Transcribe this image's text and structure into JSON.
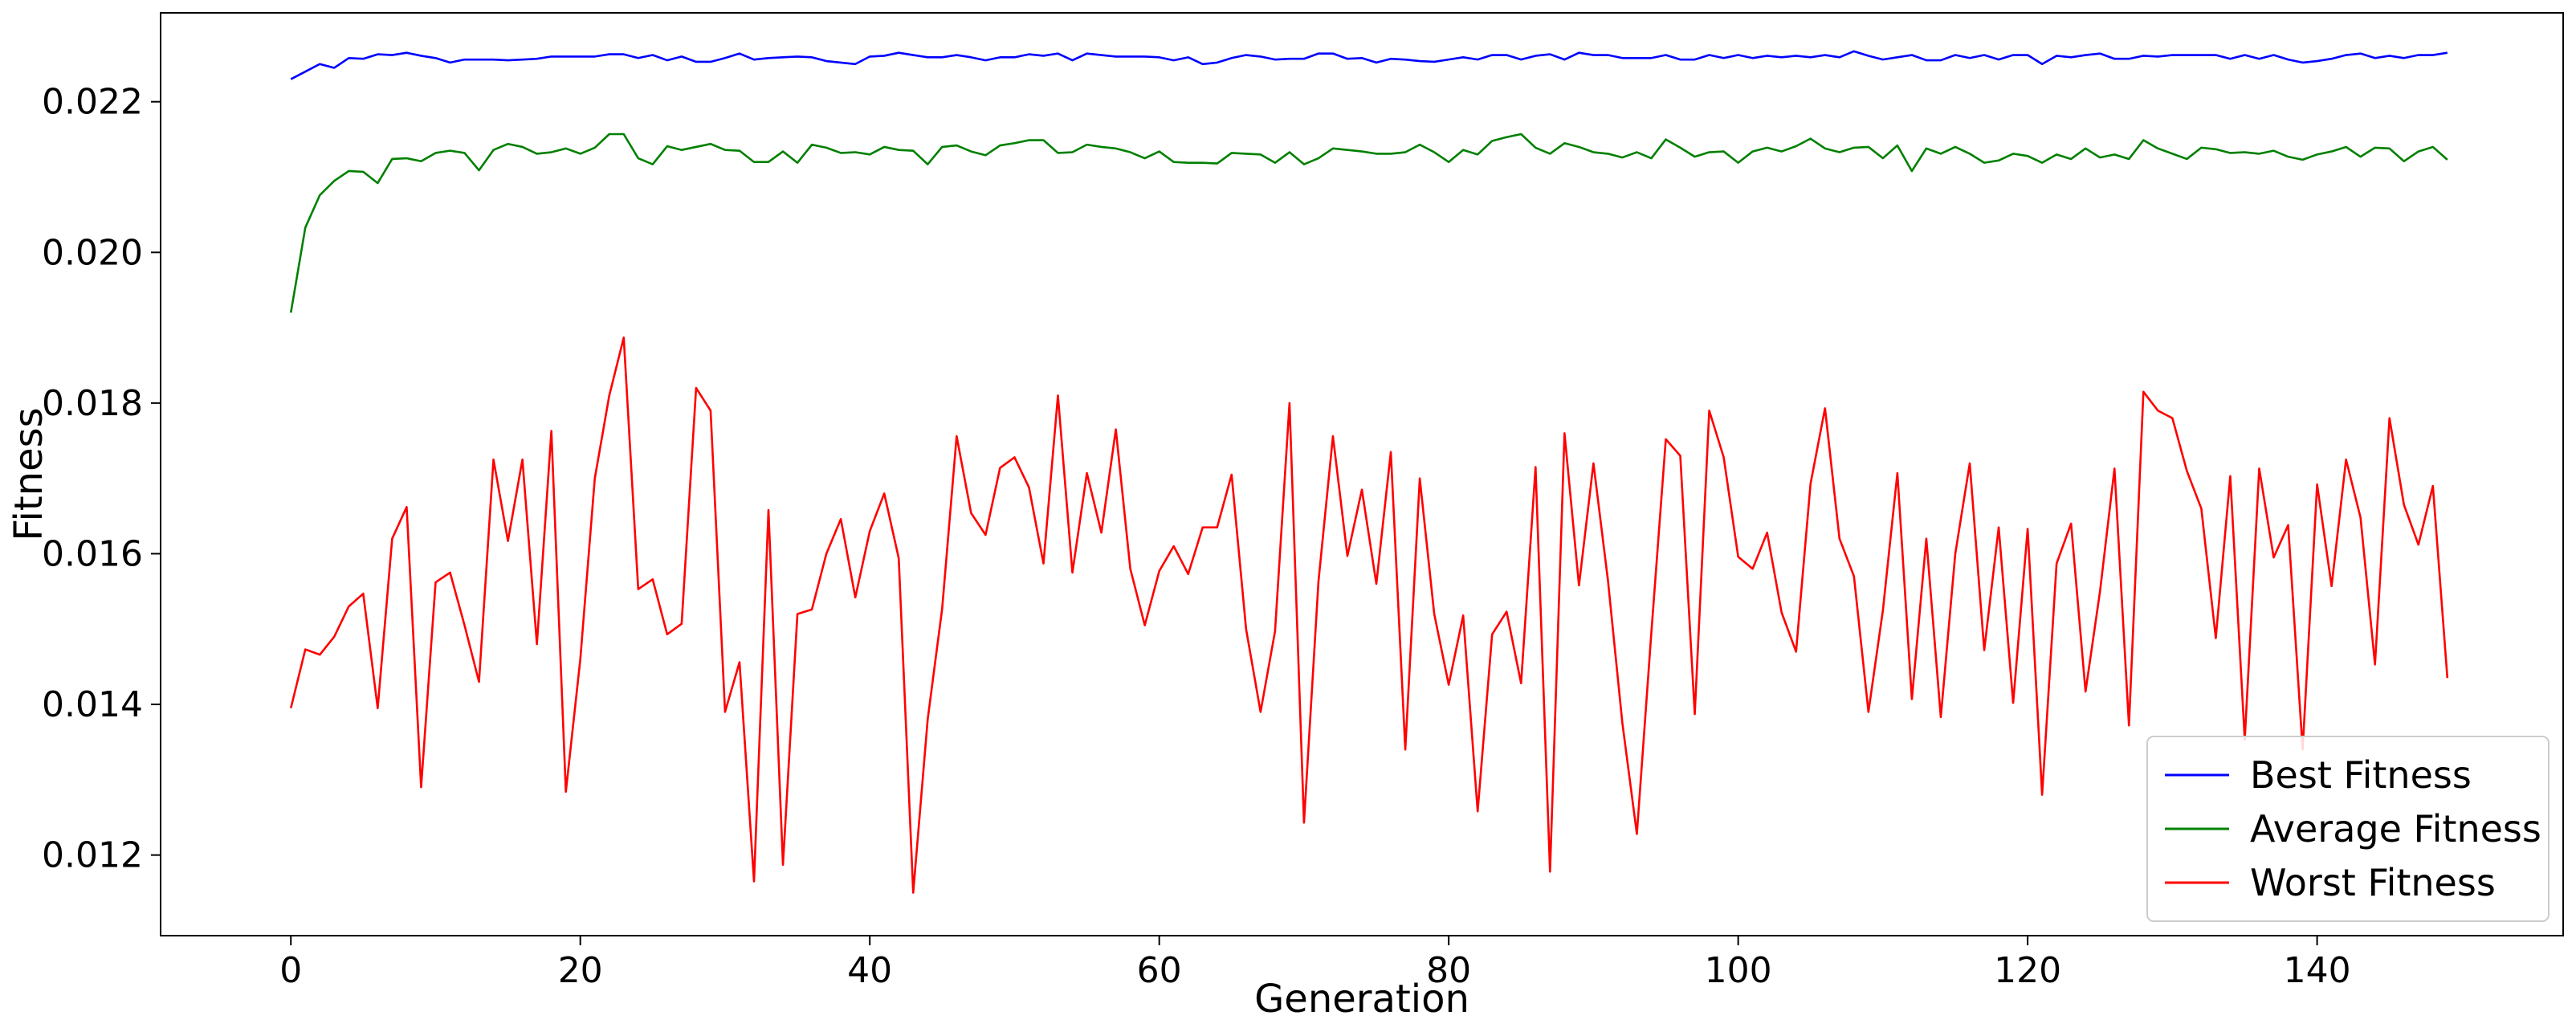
{
  "chart_data": {
    "type": "line",
    "title": "",
    "xlabel": "Generation",
    "ylabel": "Fitness",
    "xlim": [
      -9,
      157
    ],
    "ylim": [
      0.01093,
      0.02318
    ],
    "xticks": [
      0,
      20,
      40,
      60,
      80,
      100,
      120,
      140
    ],
    "xtick_labels": [
      "0",
      "20",
      "40",
      "60",
      "80",
      "100",
      "120",
      "140"
    ],
    "yticks": [
      0.012,
      0.014,
      0.016,
      0.018,
      0.02,
      0.022
    ],
    "ytick_labels": [
      "0.012",
      "0.014",
      "0.016",
      "0.018",
      "0.020",
      "0.022"
    ],
    "grid": false,
    "legend_position": "lower-right",
    "x_start": 0,
    "x_step": 1,
    "series": [
      {
        "name": "Best Fitness",
        "color": "#0000ff",
        "values": [
          0.0223,
          0.0224,
          0.0225,
          0.02245,
          0.02258,
          0.02257,
          0.02263,
          0.02262,
          0.02265,
          0.02261,
          0.02258,
          0.02252,
          0.02256,
          0.02256,
          0.02256,
          0.02255,
          0.02256,
          0.02257,
          0.0226,
          0.0226,
          0.0226,
          0.0226,
          0.02263,
          0.02263,
          0.02258,
          0.02262,
          0.02255,
          0.0226,
          0.02253,
          0.02253,
          0.02258,
          0.02264,
          0.02256,
          0.02258,
          0.02259,
          0.0226,
          0.02259,
          0.02254,
          0.02252,
          0.0225,
          0.0226,
          0.02261,
          0.02265,
          0.02262,
          0.02259,
          0.02259,
          0.02262,
          0.02259,
          0.02255,
          0.02259,
          0.02259,
          0.02263,
          0.02261,
          0.02264,
          0.02255,
          0.02264,
          0.02262,
          0.0226,
          0.0226,
          0.0226,
          0.02259,
          0.02255,
          0.02259,
          0.0225,
          0.02252,
          0.02258,
          0.02262,
          0.0226,
          0.02256,
          0.02257,
          0.02257,
          0.02264,
          0.02264,
          0.02257,
          0.02258,
          0.02252,
          0.02257,
          0.02256,
          0.02254,
          0.02253,
          0.02256,
          0.02259,
          0.02256,
          0.02262,
          0.02262,
          0.02256,
          0.02261,
          0.02263,
          0.02256,
          0.02265,
          0.02262,
          0.02262,
          0.02258,
          0.02258,
          0.02258,
          0.02262,
          0.02256,
          0.02256,
          0.02262,
          0.02258,
          0.02262,
          0.02258,
          0.02261,
          0.02259,
          0.02261,
          0.02259,
          0.02262,
          0.02259,
          0.02267,
          0.02261,
          0.02256,
          0.02259,
          0.02262,
          0.02255,
          0.02255,
          0.02262,
          0.02258,
          0.02262,
          0.02256,
          0.02262,
          0.02262,
          0.0225,
          0.02261,
          0.02259,
          0.02262,
          0.02264,
          0.02257,
          0.02257,
          0.02261,
          0.0226,
          0.02262,
          0.02262,
          0.02262,
          0.02262,
          0.02257,
          0.02262,
          0.02257,
          0.02262,
          0.02256,
          0.02252,
          0.02254,
          0.02257,
          0.02262,
          0.02264,
          0.02258,
          0.02261,
          0.02258,
          0.02262,
          0.02262,
          0.02265
        ]
      },
      {
        "name": "Average Fitness",
        "color": "#008000",
        "values": [
          0.0192,
          0.02033,
          0.02076,
          0.02095,
          0.02108,
          0.02107,
          0.02092,
          0.02124,
          0.02125,
          0.02121,
          0.02132,
          0.02135,
          0.02132,
          0.02109,
          0.02136,
          0.02144,
          0.0214,
          0.02131,
          0.02133,
          0.02138,
          0.02131,
          0.02139,
          0.02157,
          0.02157,
          0.02125,
          0.02117,
          0.02141,
          0.02136,
          0.0214,
          0.02144,
          0.02136,
          0.02135,
          0.0212,
          0.0212,
          0.02134,
          0.02119,
          0.02143,
          0.02139,
          0.02132,
          0.02133,
          0.0213,
          0.0214,
          0.02136,
          0.02135,
          0.02117,
          0.0214,
          0.02142,
          0.02134,
          0.02129,
          0.02142,
          0.02145,
          0.02149,
          0.02149,
          0.02132,
          0.02133,
          0.02143,
          0.0214,
          0.02138,
          0.02133,
          0.02125,
          0.02134,
          0.0212,
          0.02119,
          0.02119,
          0.02118,
          0.02132,
          0.02131,
          0.0213,
          0.02119,
          0.02133,
          0.02117,
          0.02125,
          0.02138,
          0.02136,
          0.02134,
          0.02131,
          0.02131,
          0.02133,
          0.02143,
          0.02133,
          0.0212,
          0.02136,
          0.0213,
          0.02148,
          0.02153,
          0.02157,
          0.02139,
          0.02131,
          0.02145,
          0.0214,
          0.02133,
          0.02131,
          0.02126,
          0.02133,
          0.02125,
          0.0215,
          0.02139,
          0.02127,
          0.02133,
          0.02134,
          0.02119,
          0.02134,
          0.02139,
          0.02134,
          0.02141,
          0.02151,
          0.02138,
          0.02133,
          0.02139,
          0.0214,
          0.02125,
          0.02142,
          0.02108,
          0.02138,
          0.02131,
          0.0214,
          0.02131,
          0.02119,
          0.02122,
          0.02131,
          0.02128,
          0.02119,
          0.0213,
          0.02124,
          0.02138,
          0.02126,
          0.0213,
          0.02124,
          0.02149,
          0.02138,
          0.02131,
          0.02124,
          0.02139,
          0.02137,
          0.02132,
          0.02133,
          0.02131,
          0.02135,
          0.02127,
          0.02123,
          0.0213,
          0.02134,
          0.0214,
          0.02127,
          0.02139,
          0.02138,
          0.02121,
          0.02134,
          0.0214,
          0.02123
        ]
      },
      {
        "name": "Worst Fitness",
        "color": "#ff0000",
        "values": [
          0.01395,
          0.01473,
          0.01466,
          0.0149,
          0.0153,
          0.01547,
          0.01395,
          0.0162,
          0.01662,
          0.0129,
          0.01562,
          0.01575,
          0.01505,
          0.0143,
          0.01725,
          0.01617,
          0.01725,
          0.0148,
          0.01763,
          0.01284,
          0.0146,
          0.017,
          0.0181,
          0.01887,
          0.01553,
          0.01566,
          0.01493,
          0.01507,
          0.0182,
          0.0179,
          0.0139,
          0.01456,
          0.01165,
          0.01658,
          0.01187,
          0.0152,
          0.01526,
          0.016,
          0.01646,
          0.01542,
          0.0163,
          0.0168,
          0.01594,
          0.0115,
          0.0138,
          0.01527,
          0.01756,
          0.01654,
          0.01625,
          0.01714,
          0.01728,
          0.01688,
          0.01587,
          0.0181,
          0.01575,
          0.01707,
          0.01628,
          0.01765,
          0.0158,
          0.01505,
          0.01577,
          0.0161,
          0.01573,
          0.01635,
          0.01635,
          0.01705,
          0.015,
          0.0139,
          0.01497,
          0.018,
          0.01243,
          0.01563,
          0.01756,
          0.01597,
          0.01685,
          0.0156,
          0.01735,
          0.0134,
          0.017,
          0.0152,
          0.01426,
          0.01518,
          0.01258,
          0.01493,
          0.01523,
          0.01428,
          0.01715,
          0.01178,
          0.0176,
          0.01558,
          0.0172,
          0.01565,
          0.01375,
          0.01228,
          0.01495,
          0.01752,
          0.0173,
          0.01387,
          0.0179,
          0.01728,
          0.01596,
          0.0158,
          0.01628,
          0.01522,
          0.0147,
          0.01693,
          0.01793,
          0.0162,
          0.0157,
          0.0139,
          0.01525,
          0.01707,
          0.01407,
          0.0162,
          0.01383,
          0.016,
          0.0172,
          0.01472,
          0.01635,
          0.01402,
          0.01633,
          0.0128,
          0.01587,
          0.0164,
          0.01417,
          0.0155,
          0.01713,
          0.01372,
          0.01815,
          0.0179,
          0.0178,
          0.0171,
          0.0166,
          0.01488,
          0.01703,
          0.01353,
          0.01713,
          0.01595,
          0.01638,
          0.0134,
          0.01692,
          0.01557,
          0.01725,
          0.01648,
          0.01453,
          0.0178,
          0.01665,
          0.01612,
          0.0169,
          0.01435
        ]
      }
    ]
  }
}
